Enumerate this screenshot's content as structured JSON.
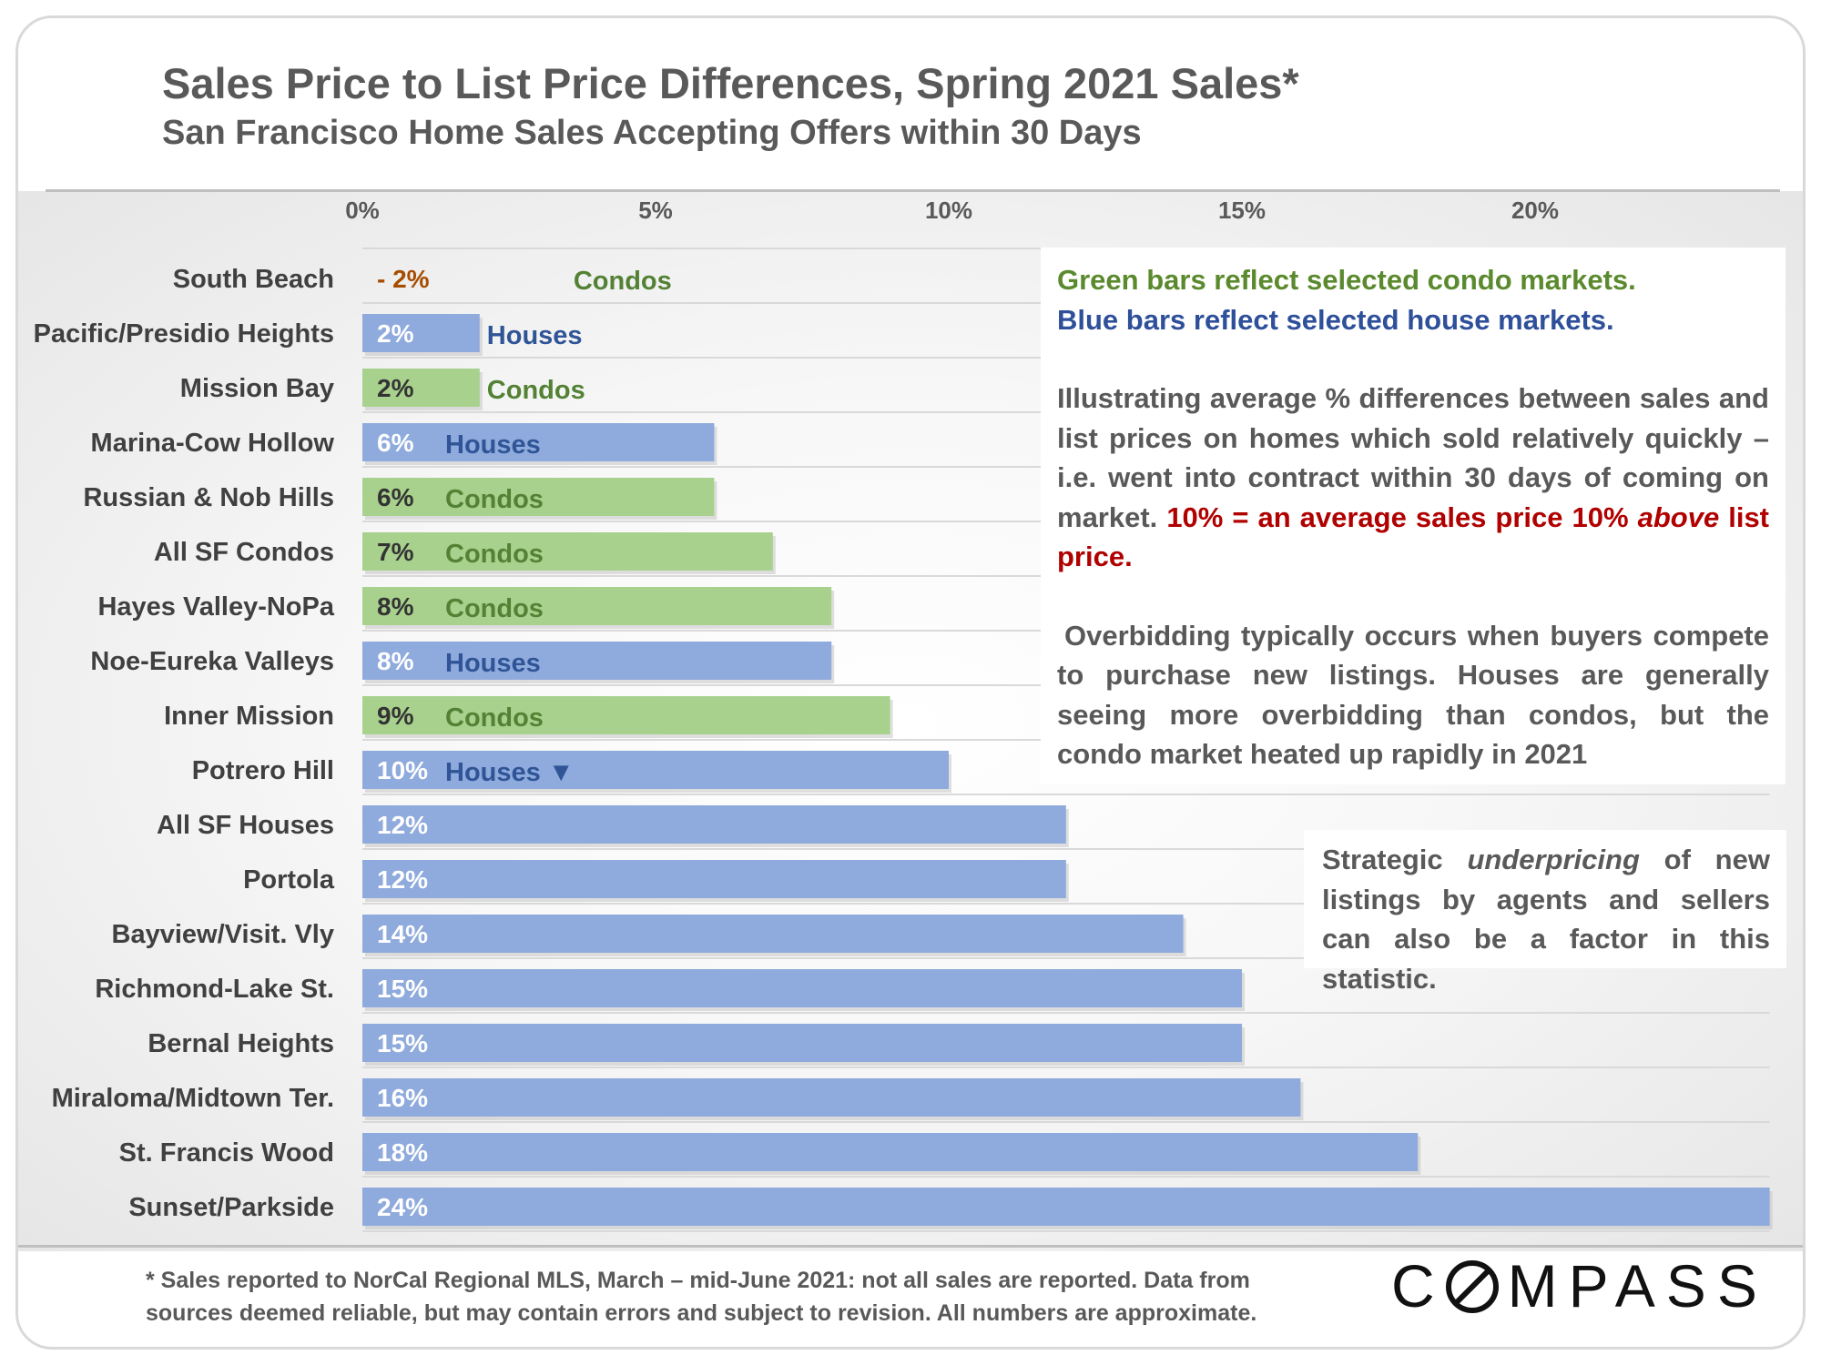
{
  "title": "Sales Price to List Price Differences, Spring 2021 Sales*",
  "subtitle": "San Francisco Home Sales Accepting Offers within 30 Days",
  "colors": {
    "condo": "#a9d18e",
    "house": "#8faadc",
    "negative_label": "#a64d00",
    "condo_text": "#548235",
    "house_text": "#2f5597",
    "highlight_text": "#b00000"
  },
  "chart_data": {
    "type": "bar",
    "orientation": "horizontal",
    "xlim": [
      0,
      24
    ],
    "x_ticks": [
      "0%",
      "5%",
      "10%",
      "15%",
      "20%"
    ],
    "x_tick_values": [
      0,
      5,
      10,
      15,
      20
    ],
    "grid": true,
    "legend": "none",
    "categories": [
      "South Beach",
      "Pacific/Presidio Heights",
      "Mission Bay",
      "Marina-Cow Hollow",
      "Russian & Nob Hills",
      "All SF Condos",
      "Hayes Valley-NoPa",
      "Noe-Eureka Valleys",
      "Inner Mission",
      "Potrero Hill",
      "All SF Houses",
      "Portola",
      "Bayview/Visit. Vly",
      "Richmond-Lake St.",
      "Bernal Heights",
      "Miraloma/Midtown Ter.",
      "St. Francis Wood",
      "Sunset/Parkside"
    ],
    "values": [
      -2,
      2,
      2,
      6,
      6,
      7,
      8,
      8,
      9,
      10,
      12,
      12,
      14,
      15,
      15,
      16,
      18,
      24
    ],
    "value_labels": [
      "- 2%",
      "2%",
      "2%",
      "6%",
      "6%",
      "7%",
      "8%",
      "8%",
      "9%",
      "10%",
      "12%",
      "12%",
      "14%",
      "15%",
      "15%",
      "16%",
      "18%",
      "24%"
    ],
    "bar_types": [
      "condo",
      "house",
      "condo",
      "house",
      "condo",
      "condo",
      "condo",
      "house",
      "condo",
      "house",
      "house",
      "house",
      "house",
      "house",
      "house",
      "house",
      "house",
      "house"
    ],
    "type_labels": [
      "Condos",
      "Houses",
      "Condos",
      "Houses",
      "Condos",
      "Condos",
      "Condos",
      "Houses",
      "Condos",
      "Houses ▼",
      "",
      "",
      "",
      "",
      "",
      "",
      "",
      ""
    ]
  },
  "notes": {
    "legend_green": "Green bars reflect selected condo markets.",
    "legend_blue": "Blue bars reflect selected house markets.",
    "explain_1": "Illustrating average % differences between sales and list prices on homes which sold relatively quickly – i.e. went into contract within 30 days of coming on market.",
    "explain_2": "10% = an average sales price 10%",
    "explain_3": "above",
    "explain_4": "list price.",
    "overbid": "Overbidding typically occurs when buyers compete to purchase new listings.  Houses are generally seeing more overbidding than condos, but the condo market heated up rapidly in 2021",
    "under_1": "Strategic",
    "under_2": "underpricing",
    "under_3": "of new listings by agents and sellers can also be a factor in this statistic."
  },
  "footnote": {
    "line1": "* Sales reported to NorCal Regional MLS, March – mid-June 2021: not all sales are reported. Data from",
    "line2": "sources deemed reliable, but may contain errors and subject to revision. All numbers are approximate."
  },
  "logo": {
    "before": "C",
    "after": "MPASS"
  }
}
